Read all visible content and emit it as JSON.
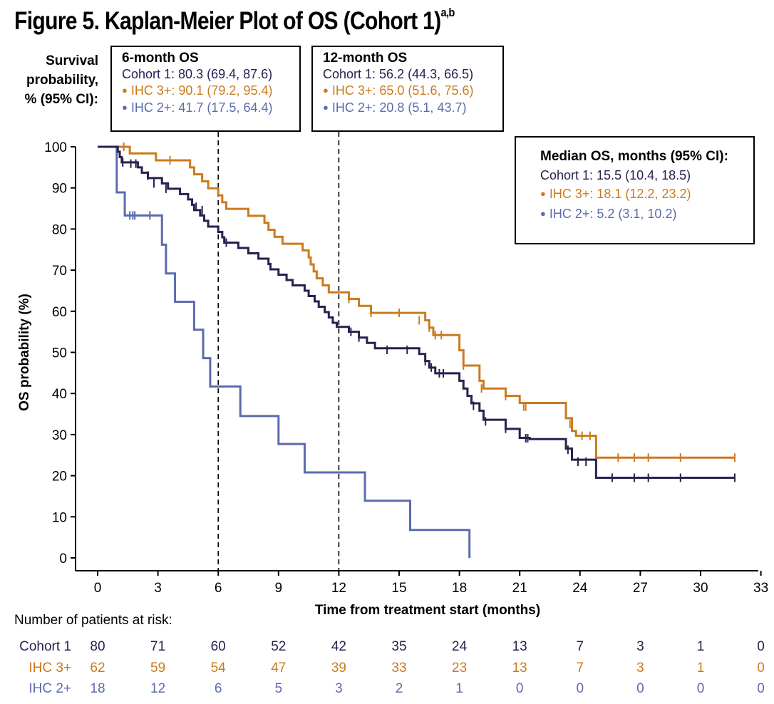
{
  "figure": {
    "title": "Figure 5. Kaplan-Meier Plot of OS (Cohort 1)",
    "title_sup": "a,b",
    "survival_label": [
      "Survival",
      "probability,",
      "% (95% CI):"
    ]
  },
  "boxes": {
    "six_month": {
      "heading": "6-month OS",
      "cohort1": "Cohort 1: 80.3 (69.4, 87.6)",
      "ihc3": "IHC 3+: 90.1 (79.2, 95.4)",
      "ihc2": "IHC 2+: 41.7 (17.5, 64.4)"
    },
    "twelve_month": {
      "heading": "12-month OS",
      "cohort1": "Cohort 1: 56.2 (44.3, 66.5)",
      "ihc3": "IHC 3+: 65.0 (51.6, 75.6)",
      "ihc2": "IHC 2+: 20.8 (5.1, 43.7)"
    },
    "median": {
      "heading": "Median OS, months (95% CI):",
      "cohort1": "Cohort 1: 15.5 (10.4, 18.5)",
      "ihc3": "IHC 3+: 18.1 (12.2, 23.2)",
      "ihc2": "IHC 2+: 5.2 (3.1, 10.2)"
    }
  },
  "chart_data": {
    "type": "line",
    "subtype": "kaplan-meier",
    "xlabel": "Time from treatment start (months)",
    "ylabel": "OS probability (%)",
    "xlim": [
      -1.1,
      33
    ],
    "ylim": [
      -3,
      100
    ],
    "xticks": [
      0,
      3,
      6,
      9,
      12,
      15,
      18,
      21,
      24,
      27,
      30,
      33
    ],
    "yticks": [
      0,
      10,
      20,
      30,
      40,
      50,
      60,
      70,
      80,
      90,
      100
    ],
    "reference_lines_x": [
      6,
      12
    ],
    "colors": {
      "cohort1": "#28204f",
      "ihc3": "#cc7a1d",
      "ihc2": "#5a6cb0"
    },
    "series": [
      {
        "name": "IHC 2+",
        "key": "ihc2",
        "steps": [
          [
            0,
            100
          ],
          [
            0.95,
            88.9
          ],
          [
            1.35,
            83.3
          ],
          [
            3.2,
            76.2
          ],
          [
            3.4,
            69.2
          ],
          [
            3.85,
            62.3
          ],
          [
            4.8,
            55.5
          ],
          [
            5.25,
            48.6
          ],
          [
            5.6,
            41.7
          ],
          [
            7.1,
            34.5
          ],
          [
            9.0,
            27.7
          ],
          [
            10.3,
            20.8
          ],
          [
            13.3,
            13.9
          ],
          [
            15.55,
            6.8
          ],
          [
            18.5,
            0
          ]
        ],
        "censors": [
          [
            1.6,
            83.3
          ],
          [
            1.75,
            83.3
          ],
          [
            1.85,
            83.3
          ],
          [
            2.6,
            83.3
          ]
        ]
      },
      {
        "name": "IHC 3+",
        "key": "ihc3",
        "steps": [
          [
            0,
            100
          ],
          [
            1.6,
            98.4
          ],
          [
            2.9,
            96.7
          ],
          [
            4.6,
            95.0
          ],
          [
            4.8,
            93.3
          ],
          [
            5.2,
            91.6
          ],
          [
            5.5,
            89.9
          ],
          [
            6.0,
            88.2
          ],
          [
            6.2,
            86.5
          ],
          [
            6.4,
            84.9
          ],
          [
            7.5,
            83.2
          ],
          [
            8.3,
            81.5
          ],
          [
            8.5,
            79.8
          ],
          [
            8.8,
            78.1
          ],
          [
            9.2,
            76.4
          ],
          [
            10.2,
            74.8
          ],
          [
            10.5,
            73.1
          ],
          [
            10.6,
            71.4
          ],
          [
            10.75,
            69.7
          ],
          [
            10.9,
            68.0
          ],
          [
            11.2,
            66.3
          ],
          [
            11.5,
            64.6
          ],
          [
            12.5,
            63.0
          ],
          [
            13.0,
            61.3
          ],
          [
            13.6,
            59.6
          ],
          [
            16.3,
            57.8
          ],
          [
            16.5,
            56.0
          ],
          [
            16.7,
            54.2
          ],
          [
            18.0,
            50.5
          ],
          [
            18.2,
            46.8
          ],
          [
            19.0,
            43.1
          ],
          [
            19.2,
            41.2
          ],
          [
            20.3,
            39.4
          ],
          [
            21.0,
            37.7
          ],
          [
            23.3,
            34.0
          ],
          [
            23.6,
            30.9
          ],
          [
            23.8,
            29.7
          ],
          [
            24.8,
            24.4
          ]
        ],
        "censors": [
          [
            1.3,
            100
          ],
          [
            3.6,
            96.7
          ],
          [
            12.5,
            63.0
          ],
          [
            13.6,
            59.6
          ],
          [
            15.0,
            59.6
          ],
          [
            16.0,
            57.8
          ],
          [
            16.5,
            56.0
          ],
          [
            16.8,
            54.2
          ],
          [
            17.1,
            54.2
          ],
          [
            18.2,
            46.8
          ],
          [
            19.1,
            41.2
          ],
          [
            20.3,
            39.4
          ],
          [
            21.2,
            36.8
          ],
          [
            21.3,
            36.8
          ],
          [
            23.5,
            32.6
          ],
          [
            24.1,
            29.7
          ],
          [
            24.5,
            29.7
          ],
          [
            25.9,
            24.4
          ],
          [
            26.7,
            24.4
          ],
          [
            27.4,
            24.4
          ],
          [
            29.0,
            24.4
          ],
          [
            31.7,
            24.4
          ]
        ]
      },
      {
        "name": "Cohort 1",
        "key": "cohort1",
        "steps": [
          [
            0,
            100
          ],
          [
            1.0,
            98.8
          ],
          [
            1.1,
            97.5
          ],
          [
            1.2,
            96.2
          ],
          [
            2.0,
            95.0
          ],
          [
            2.2,
            93.7
          ],
          [
            2.5,
            92.4
          ],
          [
            3.2,
            91.1
          ],
          [
            3.5,
            89.8
          ],
          [
            4.1,
            88.5
          ],
          [
            4.5,
            87.2
          ],
          [
            4.7,
            85.9
          ],
          [
            4.8,
            84.6
          ],
          [
            5.1,
            83.3
          ],
          [
            5.3,
            82.0
          ],
          [
            5.5,
            80.6
          ],
          [
            6.0,
            79.3
          ],
          [
            6.2,
            78.0
          ],
          [
            6.3,
            76.7
          ],
          [
            7.0,
            75.4
          ],
          [
            7.5,
            74.1
          ],
          [
            8.0,
            72.8
          ],
          [
            8.5,
            71.5
          ],
          [
            8.6,
            70.2
          ],
          [
            9.0,
            68.9
          ],
          [
            9.4,
            67.6
          ],
          [
            9.7,
            66.3
          ],
          [
            10.3,
            65.0
          ],
          [
            10.5,
            63.7
          ],
          [
            10.8,
            62.4
          ],
          [
            11.0,
            61.1
          ],
          [
            11.3,
            59.8
          ],
          [
            11.5,
            58.5
          ],
          [
            11.7,
            57.2
          ],
          [
            11.9,
            56.2
          ],
          [
            12.5,
            55.0
          ],
          [
            13.0,
            53.6
          ],
          [
            13.4,
            52.3
          ],
          [
            13.8,
            51.0
          ],
          [
            16.0,
            49.6
          ],
          [
            16.3,
            47.9
          ],
          [
            16.5,
            46.3
          ],
          [
            16.8,
            44.9
          ],
          [
            18.0,
            43.1
          ],
          [
            18.2,
            41.2
          ],
          [
            18.4,
            39.4
          ],
          [
            18.6,
            37.6
          ],
          [
            19.0,
            35.8
          ],
          [
            19.2,
            33.6
          ],
          [
            20.3,
            31.4
          ],
          [
            21.0,
            29.2
          ],
          [
            21.5,
            28.9
          ],
          [
            23.3,
            26.6
          ],
          [
            23.6,
            23.9
          ],
          [
            24.8,
            19.5
          ]
        ],
        "censors": [
          [
            1.25,
            96.2
          ],
          [
            1.65,
            95.9
          ],
          [
            1.9,
            95.9
          ],
          [
            2.5,
            93.0
          ],
          [
            2.8,
            91.1
          ],
          [
            3.4,
            89.8
          ],
          [
            4.9,
            85.4
          ],
          [
            5.2,
            84.6
          ],
          [
            6.4,
            76.7
          ],
          [
            12.6,
            55.0
          ],
          [
            13.0,
            53.6
          ],
          [
            14.4,
            50.6
          ],
          [
            15.4,
            50.6
          ],
          [
            16.3,
            47.9
          ],
          [
            16.6,
            46.3
          ],
          [
            17.0,
            44.9
          ],
          [
            17.2,
            44.9
          ],
          [
            18.7,
            37.0
          ],
          [
            19.3,
            33.2
          ],
          [
            20.3,
            31.4
          ],
          [
            21.3,
            29.1
          ],
          [
            21.4,
            29.1
          ],
          [
            23.4,
            26.3
          ],
          [
            23.9,
            23.4
          ],
          [
            24.3,
            23.4
          ],
          [
            25.6,
            19.5
          ],
          [
            26.7,
            19.5
          ],
          [
            27.4,
            19.5
          ],
          [
            29.0,
            19.5
          ],
          [
            31.7,
            19.5
          ]
        ]
      }
    ]
  },
  "risk_table": {
    "title": "Number of patients at risk:",
    "times": [
      0,
      3,
      6,
      9,
      12,
      15,
      18,
      21,
      24,
      27,
      30,
      33
    ],
    "rows": [
      {
        "label": "Cohort 1",
        "key": "cohort1",
        "values": [
          "80",
          "71",
          "60",
          "52",
          "42",
          "35",
          "24",
          "13",
          "7",
          "3",
          "1",
          "0"
        ]
      },
      {
        "label": "IHC 3+",
        "key": "ihc3",
        "values": [
          "62",
          "59",
          "54",
          "47",
          "39",
          "33",
          "23",
          "13",
          "7",
          "3",
          "1",
          "0"
        ]
      },
      {
        "label": "IHC 2+",
        "key": "ihc2",
        "values": [
          "18",
          "12",
          "6",
          "5",
          "3",
          "2",
          "1",
          "0",
          "0",
          "0",
          "0",
          "0"
        ]
      }
    ]
  }
}
